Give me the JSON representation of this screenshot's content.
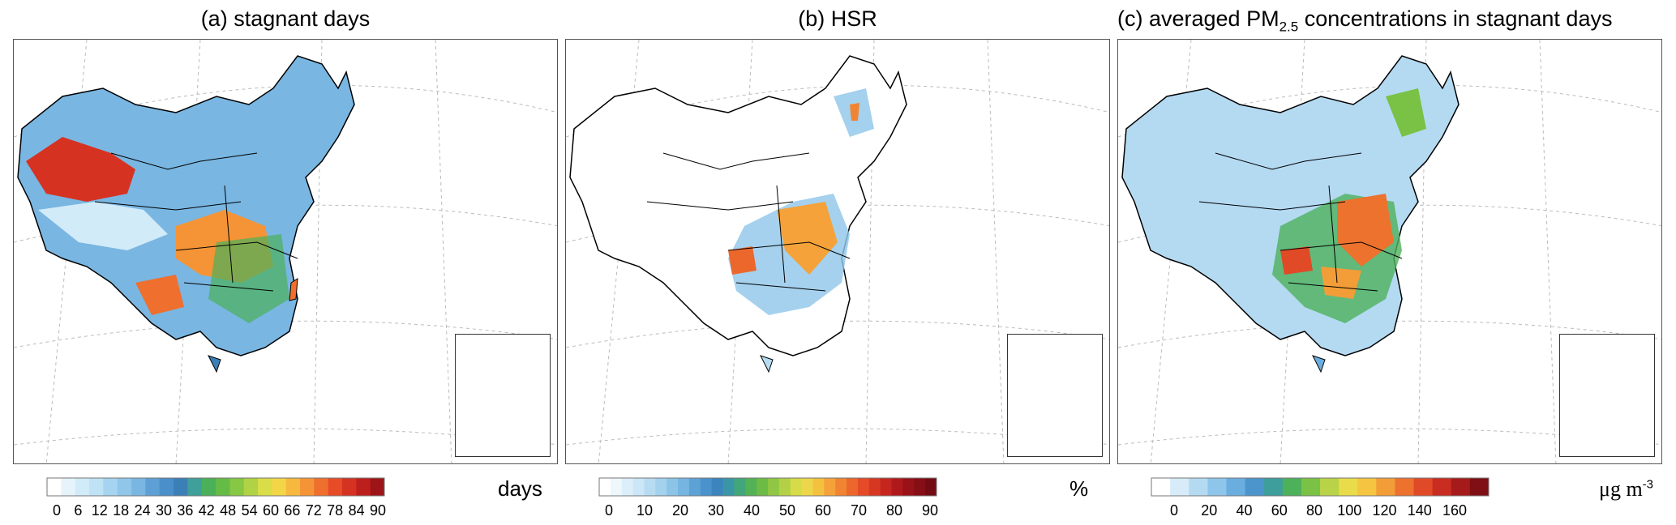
{
  "panels": [
    {
      "id": "a",
      "title": "(a)  stagnant days",
      "unit": "days",
      "ticks": [
        "0",
        "6",
        "12",
        "18",
        "24",
        "30",
        "36",
        "42",
        "48",
        "54",
        "60",
        "66",
        "72",
        "78",
        "84",
        "90"
      ],
      "colors": [
        "#ffffff",
        "#e6f3fb",
        "#d2ebf8",
        "#bfe2f5",
        "#a6d4f0",
        "#8fc6ea",
        "#79b6e2",
        "#5ea0d6",
        "#4a8fc9",
        "#3b7fb7",
        "#3f9f9a",
        "#4bb05a",
        "#64bb45",
        "#86c743",
        "#b0d245",
        "#d9dd48",
        "#f2d648",
        "#f6b83e",
        "#f49436",
        "#ef6f2e",
        "#e64c27",
        "#d63222",
        "#bd1f1d",
        "#9d1518"
      ]
    },
    {
      "id": "b",
      "title": "(b) HSR",
      "unit": "%",
      "ticks": [
        "0",
        "10",
        "20",
        "30",
        "40",
        "50",
        "60",
        "70",
        "80",
        "90"
      ],
      "colors": [
        "#ffffff",
        "#eef7fc",
        "#dceef9",
        "#cbe6f6",
        "#b7dcf2",
        "#a3d1ee",
        "#8cc4e8",
        "#76b5e1",
        "#5da2d7",
        "#4a92cb",
        "#3b84bd",
        "#3a96a6",
        "#42a67a",
        "#53b156",
        "#6cbb46",
        "#8fc644",
        "#b3d146",
        "#d6db48",
        "#eed64a",
        "#f4c13f",
        "#f4a239",
        "#f18432",
        "#ec672c",
        "#e44b26",
        "#d63722",
        "#c5261e",
        "#b0191b",
        "#981218",
        "#860e16",
        "#730b14"
      ]
    },
    {
      "id": "c",
      "title": "(c) averaged PM",
      "title_sub": "2.5",
      "title_tail": " concentrations in stagnant days",
      "unit": "μg m",
      "unit_sup": "-3",
      "ticks": [
        "0",
        "20",
        "40",
        "60",
        "80",
        "100",
        "120",
        "140",
        "160"
      ],
      "colors": [
        "#ffffff",
        "#d7ecf8",
        "#b4daf2",
        "#8ec5ea",
        "#6aaee0",
        "#4c95cc",
        "#3d9e9c",
        "#4db05b",
        "#79c245",
        "#b8d347",
        "#e8dc4a",
        "#f5c441",
        "#f29d37",
        "#ec722e",
        "#e04a27",
        "#c92c20",
        "#a51a1a",
        "#7f0f15"
      ]
    }
  ]
}
